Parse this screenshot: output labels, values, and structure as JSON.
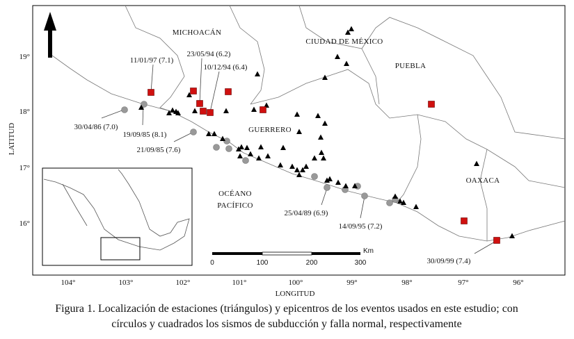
{
  "figure": {
    "regions": [
      "MICHOACÁN",
      "CIUDAD DE MÉXICO",
      "PUEBLA",
      "GUERRERO",
      "OAXACA",
      "OCÉANO",
      "PACÍFICO"
    ],
    "events": [
      "11/01/97 (7.1)",
      "23/05/94 (6.2)",
      "10/12/94 (6.4)",
      "30/04/86 (7.0)",
      "19/09/85 (8.1)",
      "21/09/85 (7.6)",
      "25/04/89 (6.9)",
      "14/09/95 (7.2)",
      "30/09/99 (7.4)"
    ],
    "x_ticks": [
      "104°",
      "103°",
      "102°",
      "101°",
      "100°",
      "99°",
      "98°",
      "97°",
      "96°"
    ],
    "y_ticks": [
      "19°",
      "18°",
      "17°",
      "16°"
    ],
    "x_label": "LONGITUD",
    "y_label": "LATITUD",
    "scale_bar": {
      "ticks": [
        "0",
        "100",
        "200",
        "300"
      ],
      "unit": "Km"
    },
    "caption": [
      "Figura 1. Localización de estaciones (triángulos) y epicentros de los eventos usados en este estudio; con",
      "círculos y cuadrados los sismos de subducción y falla normal, respectivamente"
    ]
  }
}
